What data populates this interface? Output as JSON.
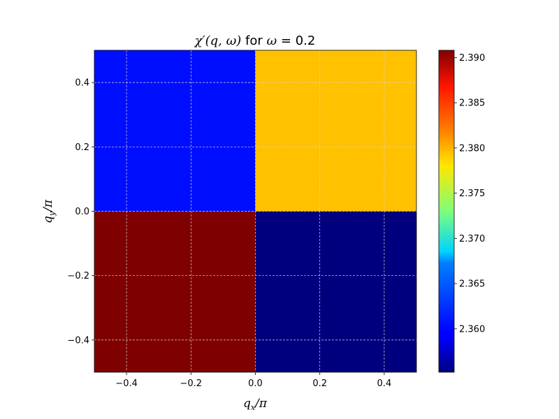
{
  "chart_data": {
    "type": "heatmap",
    "title": {
      "math": "χ′(q, ω)",
      "text": " for ",
      "math2": "ω",
      "value": " = 0.2"
    },
    "xlabel": {
      "base": "q",
      "sub": "x",
      "suffix": "/π"
    },
    "ylabel": {
      "base": "q",
      "sub": "y",
      "suffix": "/π"
    },
    "x_edges": [
      -0.5,
      0.0,
      0.5
    ],
    "y_edges": [
      -0.5,
      0.0,
      0.5
    ],
    "xlim": [
      -0.5,
      0.5
    ],
    "ylim": [
      -0.5,
      0.5
    ],
    "x_ticks": [
      -0.4,
      -0.2,
      0.0,
      0.2,
      0.4
    ],
    "y_ticks": [
      -0.4,
      -0.2,
      0.0,
      0.2,
      0.4
    ],
    "x_tick_labels": [
      "−0.4",
      "−0.2",
      "0.0",
      "0.2",
      "0.4"
    ],
    "y_tick_labels": [
      "−0.4",
      "−0.2",
      "0.0",
      "0.2",
      "0.4"
    ],
    "cells": [
      {
        "x": [
          -0.5,
          0.0
        ],
        "y": [
          0.0,
          0.5
        ],
        "value": 2.3605
      },
      {
        "x": [
          0.0,
          0.5
        ],
        "y": [
          0.0,
          0.5
        ],
        "value": 2.3795
      },
      {
        "x": [
          -0.5,
          0.0
        ],
        "y": [
          -0.5,
          0.0
        ],
        "value": 2.3908
      },
      {
        "x": [
          0.0,
          0.5
        ],
        "y": [
          -0.5,
          0.0
        ],
        "value": 2.3552
      }
    ],
    "colormap": "jet",
    "colorbar": {
      "vmin": 2.3552,
      "vmax": 2.3908,
      "ticks": [
        2.36,
        2.365,
        2.37,
        2.375,
        2.38,
        2.385,
        2.39
      ],
      "tick_labels": [
        "2.360",
        "2.365",
        "2.370",
        "2.375",
        "2.380",
        "2.385",
        "2.390"
      ]
    },
    "grid": true
  }
}
